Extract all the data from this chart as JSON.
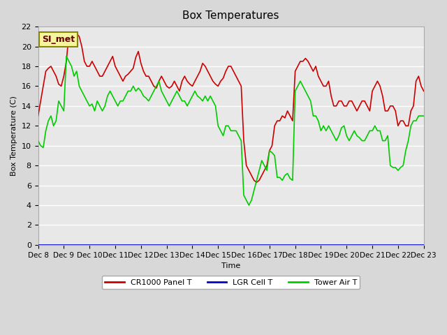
{
  "title": "Box Temperatures",
  "xlabel": "Time",
  "ylabel": "Box Temperature (C)",
  "annotation": "SI_met",
  "ylim": [
    0,
    22
  ],
  "xlim": [
    0,
    15
  ],
  "x_tick_labels": [
    "Dec 8",
    "Dec 9",
    "Dec 10",
    "Dec 11",
    "Dec 12",
    "Dec 13",
    "Dec 14",
    "Dec 15",
    "Dec 16",
    "Dec 17",
    "Dec 18",
    "Dec 19",
    "Dec 20",
    "Dec 21",
    "Dec 22",
    "Dec 23"
  ],
  "legend_labels": [
    "CR1000 Panel T",
    "LGR Cell T",
    "Tower Air T"
  ],
  "legend_colors": [
    "#cc0000",
    "#0000cc",
    "#00cc00"
  ],
  "bg_color": "#e8e8e8",
  "plot_bg": "#f0f0f0",
  "cr1000_x": [
    0,
    0.1,
    0.2,
    0.3,
    0.4,
    0.5,
    0.6,
    0.7,
    0.8,
    0.9,
    1.0,
    1.1,
    1.2,
    1.3,
    1.4,
    1.5,
    1.6,
    1.7,
    1.8,
    1.9,
    2.0,
    2.1,
    2.2,
    2.3,
    2.4,
    2.5,
    2.6,
    2.7,
    2.8,
    2.9,
    3.0,
    3.1,
    3.2,
    3.3,
    3.4,
    3.5,
    3.6,
    3.7,
    3.8,
    3.9,
    4.0,
    4.1,
    4.2,
    4.3,
    4.4,
    4.5,
    4.6,
    4.7,
    4.8,
    4.9,
    5.0,
    5.1,
    5.2,
    5.3,
    5.4,
    5.5,
    5.6,
    5.7,
    5.8,
    5.9,
    6.0,
    6.1,
    6.2,
    6.3,
    6.4,
    6.5,
    6.6,
    6.7,
    6.8,
    6.9,
    7.0,
    7.1,
    7.2,
    7.3,
    7.4,
    7.5,
    7.6,
    7.7,
    7.8,
    7.9,
    8.0,
    8.1,
    8.2,
    8.3,
    8.4,
    8.5,
    8.6,
    8.7,
    8.8,
    8.9,
    9.0,
    9.1,
    9.2,
    9.3,
    9.4,
    9.5,
    9.6,
    9.7,
    9.8,
    9.9,
    10.0,
    10.1,
    10.2,
    10.3,
    10.4,
    10.5,
    10.6,
    10.7,
    10.8,
    10.9,
    11.0,
    11.1,
    11.2,
    11.3,
    11.4,
    11.5,
    11.6,
    11.7,
    11.8,
    11.9,
    12.0,
    12.1,
    12.2,
    12.3,
    12.4,
    12.5,
    12.6,
    12.7,
    12.8,
    12.9,
    13.0,
    13.1,
    13.2,
    13.3,
    13.4,
    13.5,
    13.6,
    13.7,
    13.8,
    13.9,
    14.0,
    14.1,
    14.2,
    14.3,
    14.4,
    14.5,
    14.6,
    14.7,
    14.8,
    14.9,
    15.0
  ],
  "cr1000_y": [
    13.0,
    14.5,
    16.0,
    17.5,
    17.8,
    18.0,
    17.5,
    17.0,
    16.2,
    16.0,
    17.0,
    18.5,
    21.3,
    21.0,
    20.5,
    21.3,
    21.0,
    20.0,
    18.5,
    18.0,
    18.0,
    18.5,
    18.0,
    17.5,
    17.0,
    17.0,
    17.5,
    18.0,
    18.5,
    19.0,
    18.0,
    17.5,
    17.0,
    16.5,
    17.0,
    17.2,
    17.5,
    17.8,
    18.9,
    19.5,
    18.3,
    17.5,
    17.0,
    17.0,
    16.5,
    16.0,
    15.8,
    16.5,
    17.0,
    16.5,
    16.0,
    15.8,
    16.0,
    16.5,
    16.0,
    15.5,
    16.5,
    17.0,
    16.5,
    16.2,
    16.0,
    16.5,
    17.0,
    17.5,
    18.3,
    18.0,
    17.5,
    17.0,
    16.5,
    16.2,
    16.0,
    16.5,
    16.8,
    17.5,
    18.0,
    18.0,
    17.5,
    17.0,
    16.5,
    16.0,
    10.5,
    8.0,
    7.5,
    7.0,
    6.5,
    6.3,
    6.5,
    7.0,
    7.5,
    8.0,
    9.5,
    10.0,
    12.0,
    12.5,
    12.5,
    13.0,
    12.8,
    13.5,
    13.0,
    12.5,
    17.5,
    18.0,
    18.5,
    18.5,
    18.8,
    18.5,
    18.0,
    17.5,
    18.0,
    17.0,
    16.5,
    16.0,
    16.0,
    16.5,
    15.0,
    14.0,
    14.0,
    14.5,
    14.5,
    14.0,
    14.0,
    14.5,
    14.5,
    14.0,
    13.5,
    14.0,
    14.5,
    14.5,
    14.0,
    13.5,
    15.5,
    16.0,
    16.5,
    16.0,
    15.0,
    13.5,
    13.5,
    14.0,
    14.0,
    13.5,
    12.0,
    12.5,
    12.5,
    12.0,
    12.0,
    13.5,
    14.0,
    16.5,
    17.0,
    16.0,
    15.5
  ],
  "tower_x": [
    0,
    0.1,
    0.2,
    0.3,
    0.4,
    0.5,
    0.6,
    0.7,
    0.8,
    0.9,
    1.0,
    1.1,
    1.2,
    1.3,
    1.4,
    1.5,
    1.6,
    1.7,
    1.8,
    1.9,
    2.0,
    2.1,
    2.2,
    2.3,
    2.4,
    2.5,
    2.6,
    2.7,
    2.8,
    2.9,
    3.0,
    3.1,
    3.2,
    3.3,
    3.4,
    3.5,
    3.6,
    3.7,
    3.8,
    3.9,
    4.0,
    4.1,
    4.2,
    4.3,
    4.4,
    4.5,
    4.6,
    4.7,
    4.8,
    4.9,
    5.0,
    5.1,
    5.2,
    5.3,
    5.4,
    5.5,
    5.6,
    5.7,
    5.8,
    5.9,
    6.0,
    6.1,
    6.2,
    6.3,
    6.4,
    6.5,
    6.6,
    6.7,
    6.8,
    6.9,
    7.0,
    7.1,
    7.2,
    7.3,
    7.4,
    7.5,
    7.6,
    7.7,
    7.8,
    7.9,
    8.0,
    8.1,
    8.2,
    8.3,
    8.4,
    8.5,
    8.6,
    8.7,
    8.8,
    8.9,
    9.0,
    9.1,
    9.2,
    9.3,
    9.4,
    9.5,
    9.6,
    9.7,
    9.8,
    9.9,
    10.0,
    10.1,
    10.2,
    10.3,
    10.4,
    10.5,
    10.6,
    10.7,
    10.8,
    10.9,
    11.0,
    11.1,
    11.2,
    11.3,
    11.4,
    11.5,
    11.6,
    11.7,
    11.8,
    11.9,
    12.0,
    12.1,
    12.2,
    12.3,
    12.4,
    12.5,
    12.6,
    12.7,
    12.8,
    12.9,
    13.0,
    13.1,
    13.2,
    13.3,
    13.4,
    13.5,
    13.6,
    13.7,
    13.8,
    13.9,
    14.0,
    14.1,
    14.2,
    14.3,
    14.4,
    14.5,
    14.6,
    14.7,
    14.8,
    14.9,
    15.0
  ],
  "tower_y": [
    10.5,
    10.0,
    9.8,
    11.5,
    12.5,
    13.0,
    12.0,
    12.5,
    14.5,
    14.0,
    13.5,
    19.0,
    18.5,
    18.0,
    17.0,
    17.5,
    16.0,
    15.5,
    15.0,
    14.5,
    14.0,
    14.2,
    13.5,
    14.5,
    14.0,
    13.5,
    14.0,
    15.0,
    15.5,
    15.0,
    14.5,
    14.0,
    14.5,
    14.5,
    15.0,
    15.5,
    15.5,
    16.0,
    15.5,
    15.8,
    15.5,
    15.0,
    14.8,
    14.5,
    15.0,
    15.5,
    16.0,
    16.5,
    15.5,
    15.0,
    14.5,
    14.0,
    14.5,
    15.0,
    15.5,
    15.0,
    14.5,
    14.5,
    14.0,
    14.5,
    15.0,
    15.5,
    15.0,
    14.8,
    14.5,
    15.0,
    14.5,
    15.0,
    14.5,
    14.0,
    12.0,
    11.5,
    11.0,
    12.0,
    12.0,
    11.5,
    11.5,
    11.5,
    11.0,
    10.5,
    5.0,
    4.5,
    4.0,
    4.5,
    5.5,
    6.5,
    7.5,
    8.5,
    8.0,
    7.5,
    9.5,
    9.3,
    9.0,
    6.8,
    6.8,
    6.5,
    7.0,
    7.2,
    6.7,
    6.5,
    15.5,
    16.0,
    16.5,
    16.0,
    15.5,
    15.0,
    14.5,
    13.0,
    13.0,
    12.5,
    11.5,
    12.0,
    11.5,
    12.0,
    11.5,
    11.0,
    10.5,
    11.0,
    11.8,
    12.0,
    11.0,
    10.5,
    11.0,
    11.5,
    11.0,
    10.8,
    10.5,
    10.5,
    11.0,
    11.5,
    11.5,
    12.0,
    11.5,
    11.5,
    10.5,
    10.5,
    11.0,
    8.0,
    7.8,
    7.8,
    7.5,
    7.8,
    8.0,
    9.5,
    10.5,
    12.0,
    12.5,
    12.5,
    13.0,
    13.0,
    13.0
  ],
  "lgr_y": 0.0
}
